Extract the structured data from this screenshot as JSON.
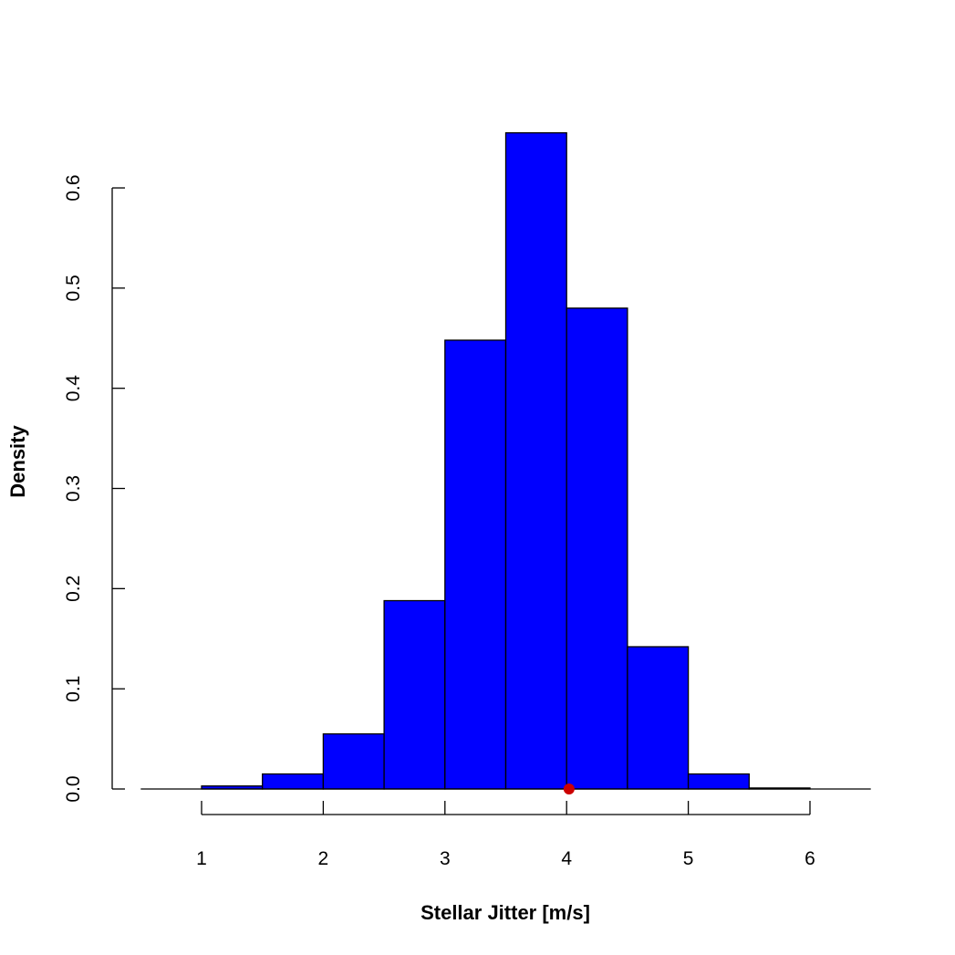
{
  "chart_data": {
    "type": "bar",
    "subtype": "histogram",
    "title": "",
    "xlabel": "Stellar Jitter [m/s]",
    "ylabel": "Density",
    "bins": [
      {
        "x0": 0.5,
        "x1": 1.0,
        "density": 0.0
      },
      {
        "x0": 1.0,
        "x1": 1.5,
        "density": 0.003
      },
      {
        "x0": 1.5,
        "x1": 2.0,
        "density": 0.015
      },
      {
        "x0": 2.0,
        "x1": 2.5,
        "density": 0.055
      },
      {
        "x0": 2.5,
        "x1": 3.0,
        "density": 0.188
      },
      {
        "x0": 3.0,
        "x1": 3.5,
        "density": 0.448
      },
      {
        "x0": 3.5,
        "x1": 4.0,
        "density": 0.655
      },
      {
        "x0": 4.0,
        "x1": 4.5,
        "density": 0.48
      },
      {
        "x0": 4.5,
        "x1": 5.0,
        "density": 0.142
      },
      {
        "x0": 5.0,
        "x1": 5.5,
        "density": 0.015
      },
      {
        "x0": 5.5,
        "x1": 6.0,
        "density": 0.001
      },
      {
        "x0": 6.0,
        "x1": 6.5,
        "density": 0.0
      }
    ],
    "x_ticks": [
      1,
      2,
      3,
      4,
      5,
      6
    ],
    "y_ticks": [
      "0.0",
      "0.1",
      "0.2",
      "0.3",
      "0.4",
      "0.5",
      "0.6"
    ],
    "xlim": [
      0.5,
      6.5
    ],
    "ylim": [
      0,
      0.6
    ],
    "bar_color": "#0000ff",
    "marker": {
      "x": 4.02,
      "y": 0.0,
      "color": "#cc0000"
    },
    "grid": false,
    "legend": "none"
  }
}
